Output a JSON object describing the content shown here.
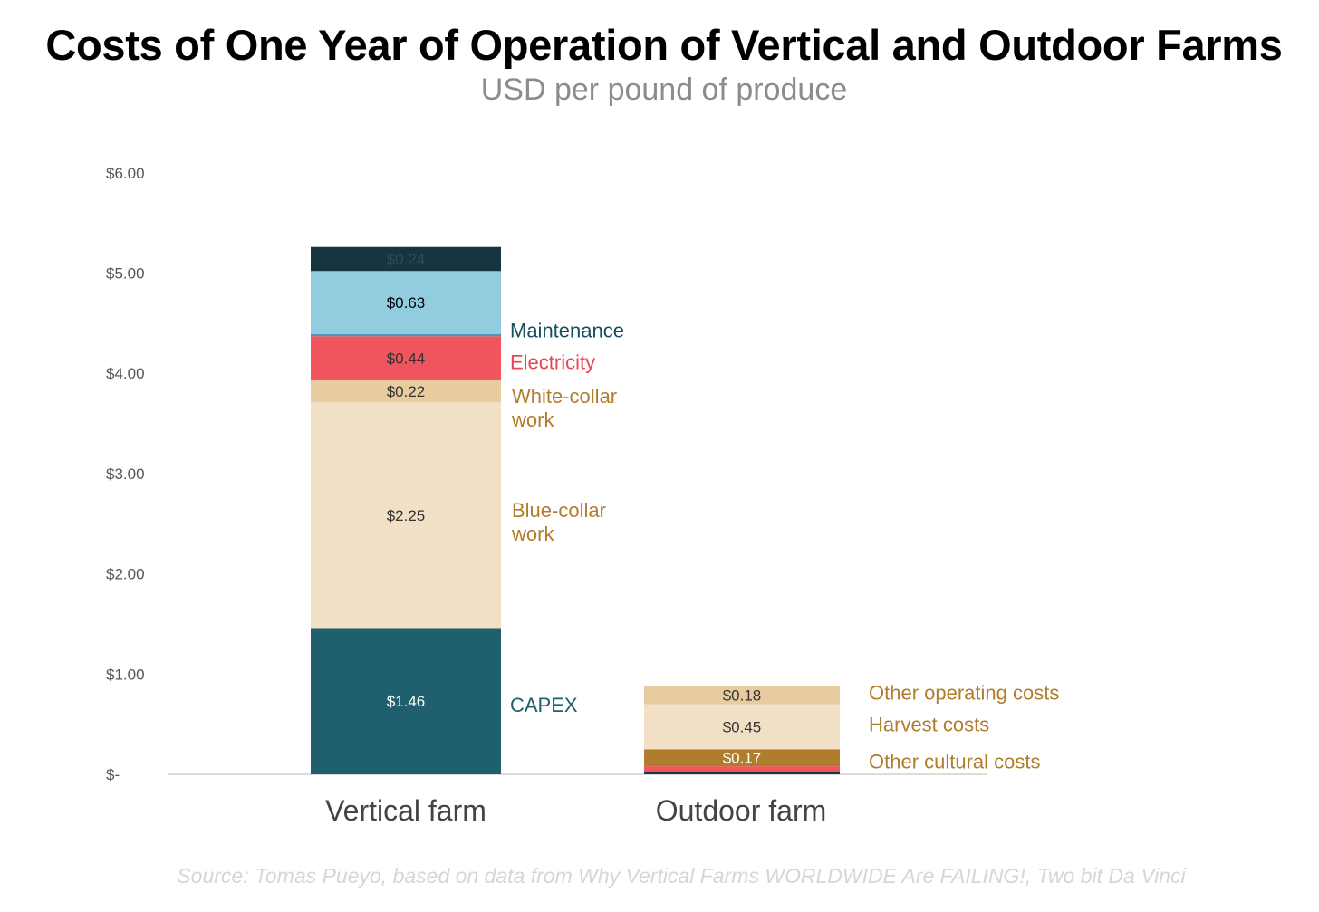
{
  "chart_data": {
    "type": "bar",
    "stacked": true,
    "title": "Costs of One Year of Operation of Vertical and Outdoor Farms",
    "subtitle": "USD per pound of produce",
    "source": "Source: Tomas Pueyo, based on data from Why Vertical Farms WORLDWIDE Are FAILING!, Two bit Da Vinci",
    "ylim": [
      0,
      6
    ],
    "yticks": [
      {
        "value": 0,
        "label": "$-"
      },
      {
        "value": 1,
        "label": "$1.00"
      },
      {
        "value": 2,
        "label": "$2.00"
      },
      {
        "value": 3,
        "label": "$3.00"
      },
      {
        "value": 4,
        "label": "$4.00"
      },
      {
        "value": 5,
        "label": "$5.00"
      },
      {
        "value": 6,
        "label": "$6.00"
      }
    ],
    "grid": false,
    "categories": [
      "Vertical farm",
      "Outdoor farm"
    ],
    "stacks": [
      {
        "category": "Vertical farm",
        "segments": [
          {
            "label": "CAPEX",
            "value": 1.46,
            "value_label": "$1.46",
            "color": "#1f5f6e",
            "text_color": "#ffffff",
            "label_color": "#1f5f6e"
          },
          {
            "label": "Blue-collar work",
            "value": 2.25,
            "value_label": "$2.25",
            "color": "#f1e0c5",
            "text_color": "#333333",
            "label_color": "#b07d2c"
          },
          {
            "label": "White-collar work",
            "value": 0.22,
            "value_label": "$0.22",
            "color": "#e8cc9f",
            "text_color": "#333333",
            "label_color": "#b07d2c"
          },
          {
            "label": "Electricity",
            "value": 0.44,
            "value_label": "$0.44",
            "color": "#f0545d",
            "text_color": "#333333",
            "label_color": "#e84654"
          },
          {
            "label": "",
            "value": 0.02,
            "value_label": "",
            "color": "#4a90c2",
            "text_color": "#333333",
            "label_color": ""
          },
          {
            "label": "Maintenance",
            "value": 0.63,
            "value_label": "$0.63",
            "color": "#91cddf",
            "text_color": "#000000",
            "label_color": "#164e5e"
          },
          {
            "label": "",
            "value": 0.24,
            "value_label": "$0.24",
            "color": "#163540",
            "text_color": "#2c4d58",
            "label_color": ""
          }
        ]
      },
      {
        "category": "Outdoor farm",
        "segments": [
          {
            "label": "",
            "value": 0.03,
            "value_label": "",
            "color": "#163540",
            "text_color": "#333333",
            "label_color": ""
          },
          {
            "label": "",
            "value": 0.05,
            "value_label": "",
            "color": "#f0545d",
            "text_color": "#333333",
            "label_color": ""
          },
          {
            "label": "Other cultural costs",
            "value": 0.17,
            "value_label": "$0.17",
            "color": "#b07d2c",
            "text_color": "#ffffff",
            "label_color": "#b07d2c"
          },
          {
            "label": "Harvest costs",
            "value": 0.45,
            "value_label": "$0.45",
            "color": "#f1e0c5",
            "text_color": "#333333",
            "label_color": "#b07d2c"
          },
          {
            "label": "Other operating costs",
            "value": 0.18,
            "value_label": "$0.18",
            "color": "#e8cc9f",
            "text_color": "#333333",
            "label_color": "#b07d2c"
          }
        ]
      }
    ]
  }
}
